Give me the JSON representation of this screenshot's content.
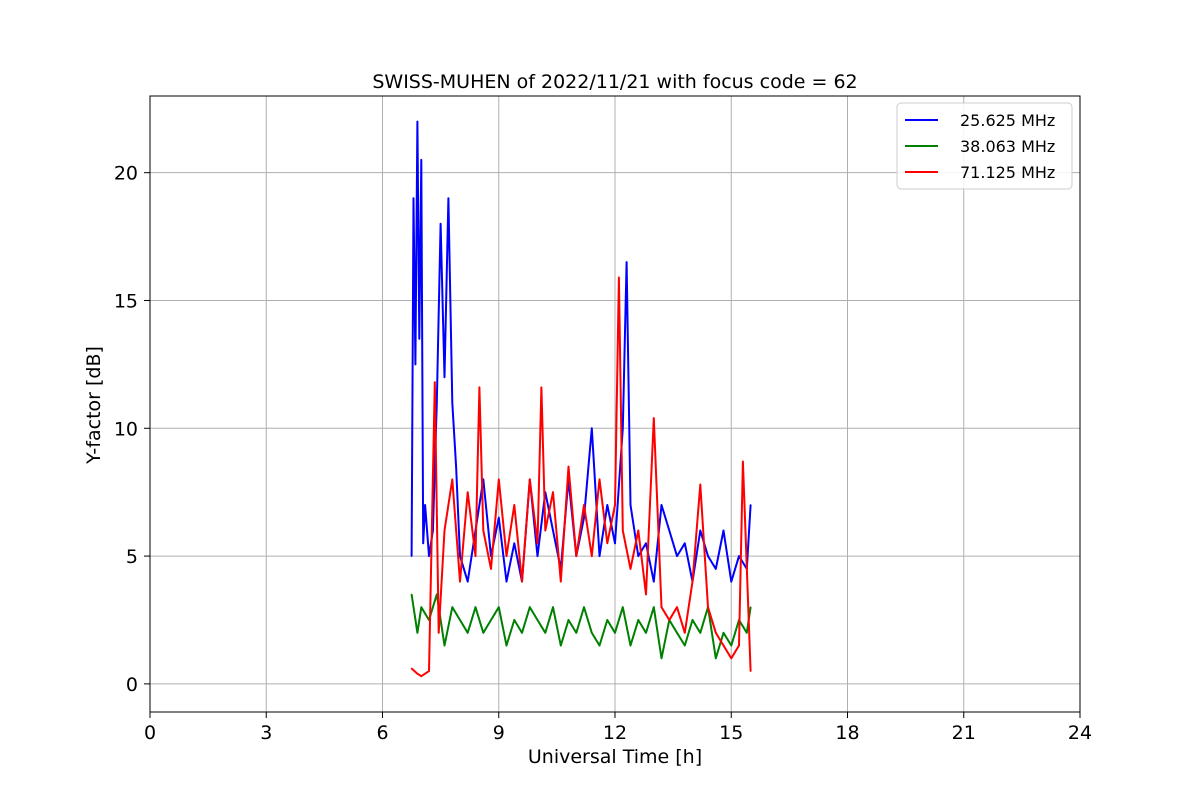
{
  "chart_data": {
    "type": "line",
    "title": "SWISS-MUHEN of 2022/11/21 with focus code = 62",
    "xlabel": "Universal Time [h]",
    "ylabel": "Y-factor [dB]",
    "xlim": [
      0,
      24
    ],
    "ylim": [
      -1.1,
      23.0
    ],
    "xticks": [
      0,
      3,
      6,
      9,
      12,
      15,
      18,
      21,
      24
    ],
    "yticks": [
      0,
      5,
      10,
      15,
      20
    ],
    "grid": true,
    "legend_position": "top-right",
    "series": [
      {
        "name": "25.625 MHz",
        "color": "#0000ff",
        "x": [
          6.75,
          6.8,
          6.85,
          6.9,
          6.95,
          7.0,
          7.05,
          7.1,
          7.2,
          7.3,
          7.4,
          7.5,
          7.6,
          7.7,
          7.8,
          7.9,
          8.0,
          8.2,
          8.4,
          8.6,
          8.8,
          9.0,
          9.2,
          9.4,
          9.6,
          9.8,
          10.0,
          10.2,
          10.4,
          10.6,
          10.8,
          11.0,
          11.2,
          11.4,
          11.6,
          11.8,
          12.0,
          12.2,
          12.3,
          12.4,
          12.6,
          12.8,
          13.0,
          13.2,
          13.4,
          13.6,
          13.8,
          14.0,
          14.2,
          14.4,
          14.6,
          14.8,
          15.0,
          15.2,
          15.4,
          15.5
        ],
        "y": [
          5.0,
          19.0,
          12.5,
          22.0,
          13.5,
          20.5,
          5.5,
          7.0,
          5.0,
          6.0,
          11.0,
          18.0,
          12.0,
          19.0,
          11.0,
          8.5,
          5.0,
          4.0,
          6.0,
          8.0,
          5.0,
          6.5,
          4.0,
          5.5,
          4.0,
          8.0,
          5.0,
          7.5,
          6.0,
          4.5,
          8.0,
          5.0,
          6.5,
          10.0,
          5.0,
          7.0,
          5.5,
          10.0,
          16.5,
          7.0,
          5.0,
          5.5,
          4.0,
          7.0,
          6.0,
          5.0,
          5.5,
          4.0,
          6.0,
          5.0,
          4.5,
          6.0,
          4.0,
          5.0,
          4.5,
          7.0
        ]
      },
      {
        "name": "38.063 MHz",
        "color": "#008000",
        "x": [
          6.75,
          6.9,
          7.0,
          7.2,
          7.4,
          7.6,
          7.8,
          8.0,
          8.2,
          8.4,
          8.6,
          8.8,
          9.0,
          9.2,
          9.4,
          9.6,
          9.8,
          10.0,
          10.2,
          10.4,
          10.6,
          10.8,
          11.0,
          11.2,
          11.4,
          11.6,
          11.8,
          12.0,
          12.2,
          12.4,
          12.6,
          12.8,
          13.0,
          13.2,
          13.4,
          13.6,
          13.8,
          14.0,
          14.2,
          14.4,
          14.6,
          14.8,
          15.0,
          15.2,
          15.4,
          15.5
        ],
        "y": [
          3.5,
          2.0,
          3.0,
          2.5,
          3.5,
          1.5,
          3.0,
          2.5,
          2.0,
          3.0,
          2.0,
          2.5,
          3.0,
          1.5,
          2.5,
          2.0,
          3.0,
          2.5,
          2.0,
          3.0,
          1.5,
          2.5,
          2.0,
          3.0,
          2.0,
          1.5,
          2.5,
          2.0,
          3.0,
          1.5,
          2.5,
          2.0,
          3.0,
          1.0,
          2.5,
          2.0,
          1.5,
          2.5,
          2.0,
          3.0,
          1.0,
          2.0,
          1.5,
          2.5,
          2.0,
          3.0
        ]
      },
      {
        "name": "71.125 MHz",
        "color": "#ff0000",
        "x": [
          6.75,
          6.9,
          7.0,
          7.2,
          7.35,
          7.45,
          7.6,
          7.8,
          8.0,
          8.2,
          8.4,
          8.5,
          8.6,
          8.8,
          9.0,
          9.2,
          9.4,
          9.6,
          9.8,
          10.0,
          10.1,
          10.2,
          10.4,
          10.6,
          10.8,
          11.0,
          11.2,
          11.4,
          11.6,
          11.8,
          12.0,
          12.1,
          12.2,
          12.4,
          12.6,
          12.8,
          13.0,
          13.2,
          13.4,
          13.6,
          13.8,
          14.0,
          14.2,
          14.4,
          14.6,
          14.8,
          15.0,
          15.2,
          15.3,
          15.5
        ],
        "y": [
          0.6,
          0.4,
          0.3,
          0.5,
          11.8,
          2.0,
          6.0,
          8.0,
          4.0,
          7.5,
          5.0,
          11.6,
          6.0,
          4.5,
          8.0,
          5.0,
          7.0,
          4.0,
          8.0,
          5.5,
          11.6,
          6.0,
          7.5,
          4.0,
          8.5,
          5.0,
          7.0,
          5.0,
          8.0,
          5.5,
          7.0,
          15.9,
          6.0,
          4.5,
          6.0,
          3.5,
          10.4,
          3.0,
          2.5,
          3.0,
          2.0,
          4.0,
          7.8,
          3.0,
          2.0,
          1.5,
          1.0,
          1.5,
          8.7,
          0.5
        ]
      }
    ]
  }
}
